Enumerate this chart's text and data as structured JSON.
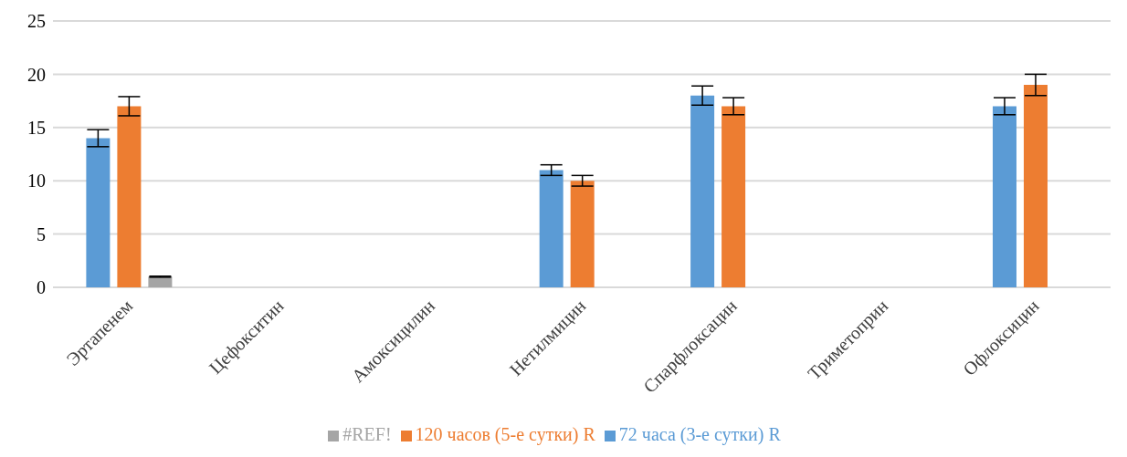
{
  "chart_data": {
    "type": "bar",
    "categories": [
      "Эртапенем",
      "Цефокситин",
      "Амоксицилин",
      "Нетилмицин",
      "Спарфлоксацин",
      "Триметоприн",
      "Офлоксицин"
    ],
    "series": [
      {
        "name": "72 часа  (3-е сутки) R",
        "color": "#5b9bd5",
        "values": [
          14,
          null,
          null,
          11,
          18,
          null,
          17
        ],
        "errors": [
          0.8,
          null,
          null,
          0.5,
          0.9,
          null,
          0.8
        ]
      },
      {
        "name": "120 часов (5-е сутки) R",
        "color": "#ed7d31",
        "values": [
          17,
          null,
          null,
          10,
          17,
          null,
          19
        ],
        "errors": [
          0.9,
          null,
          null,
          0.5,
          0.8,
          null,
          1
        ]
      },
      {
        "name": "#REF!",
        "color": "#a5a5a5",
        "values": [
          1,
          null,
          null,
          null,
          null,
          null,
          null
        ],
        "errors": [
          0.05,
          null,
          null,
          null,
          null,
          null,
          null
        ]
      }
    ],
    "ylim": [
      0,
      25
    ],
    "yticks": [
      0,
      5,
      10,
      15,
      20,
      25
    ],
    "grid": "y",
    "legend": "bottom"
  }
}
